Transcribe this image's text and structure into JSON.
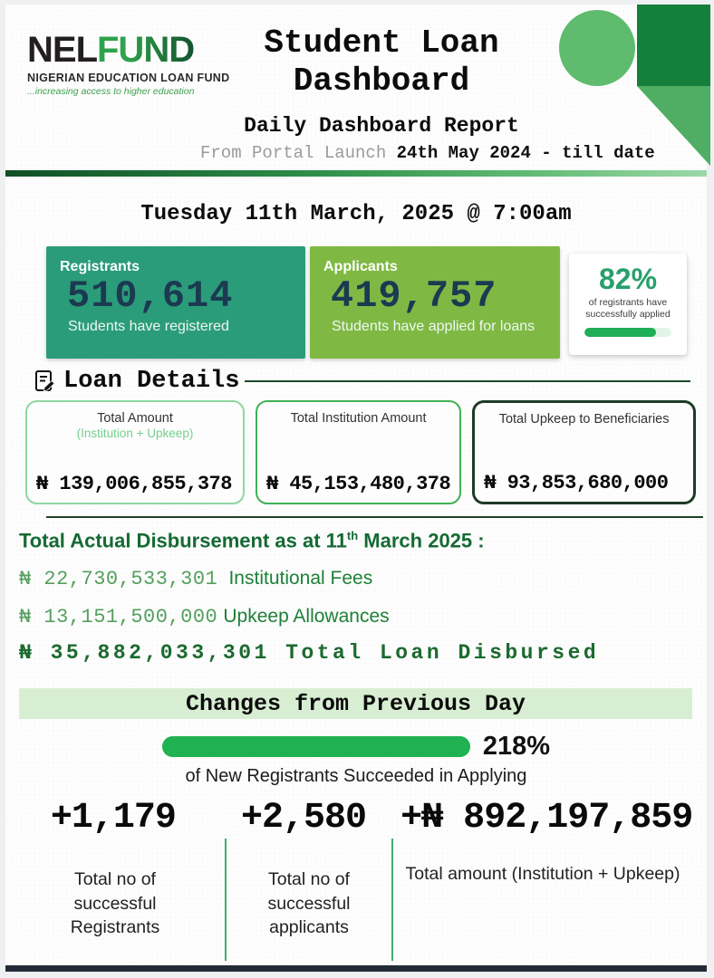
{
  "logo": {
    "name_black": "NEL",
    "name_green": "FUND",
    "org": "NIGERIAN EDUCATION LOAN FUND",
    "tagline": "...increasing access to higher education"
  },
  "header": {
    "title": "Student Loan Dashboard",
    "subtitle": "Daily Dashboard Report",
    "launch_prefix": "From Portal Launch ",
    "launch_range": "24th May 2024 - till date"
  },
  "date_line": "Tuesday 11th March, 2025 @ 7:00am",
  "stats": {
    "registrants": {
      "label": "Registrants",
      "value": "510,614",
      "caption": "Students have registered"
    },
    "applicants": {
      "label": "Applicants",
      "value": "419,757",
      "caption": "Students have applied for loans"
    },
    "applied_rate": {
      "value": "82%",
      "caption": "of registrants have successfully applied",
      "progress_pct": 82
    }
  },
  "loan_details": {
    "title": "Loan Details",
    "cards": [
      {
        "title": "Total Amount",
        "subtitle": "(Institution + Upkeep)",
        "amount": "₦ 139,006,855,378"
      },
      {
        "title": "Total Institution Amount",
        "subtitle": "",
        "amount": "₦ 45,153,480,378"
      },
      {
        "title": "Total Upkeep to Beneficiaries",
        "subtitle": "",
        "amount": "₦ 93,853,680,000"
      }
    ]
  },
  "disbursement": {
    "heading_main": "Total Actual Disbursement as at 11",
    "heading_sup": "th",
    "heading_tail": " March 2025 :",
    "rows": [
      {
        "amount": "₦ 22,730,533,301",
        "label": "Institutional Fees"
      },
      {
        "amount": "₦ 13,151,500,000",
        "label": "Upkeep Allowances"
      }
    ],
    "total_line": "₦ 35,882,033,301 Total Loan Disbursed"
  },
  "changes": {
    "band_title": "Changes from Previous Day",
    "rate_value": "218%",
    "rate_caption": "of New Registrants Succeeded in Applying",
    "deltas": [
      {
        "value": "+1,179",
        "label": "Total no of successful Registrants"
      },
      {
        "value": "+2,580",
        "label": "Total no of successful applicants"
      },
      {
        "value": "+₦ 892,197,859",
        "label": "Total amount (Institution + Upkeep)"
      }
    ]
  },
  "colors": {
    "registrants_bg": "#2b9c79",
    "applicants_bg": "#7fb944",
    "rate_green": "#28a06b",
    "progress_fill": "#1fae57",
    "pill_green": "#1fb152",
    "band_bg": "#d8eed3",
    "dark_green_text": "#156a33",
    "card1_border": "#8fd6a0",
    "card2_border": "#41b154",
    "card3_border": "#1e3b28",
    "divider_dark": "#0f4f26",
    "deco_square": "#15803c",
    "deco_triangle": "#4fae63",
    "deco_circle": "#5fbb6e",
    "bottom_bar": "#232b36"
  }
}
